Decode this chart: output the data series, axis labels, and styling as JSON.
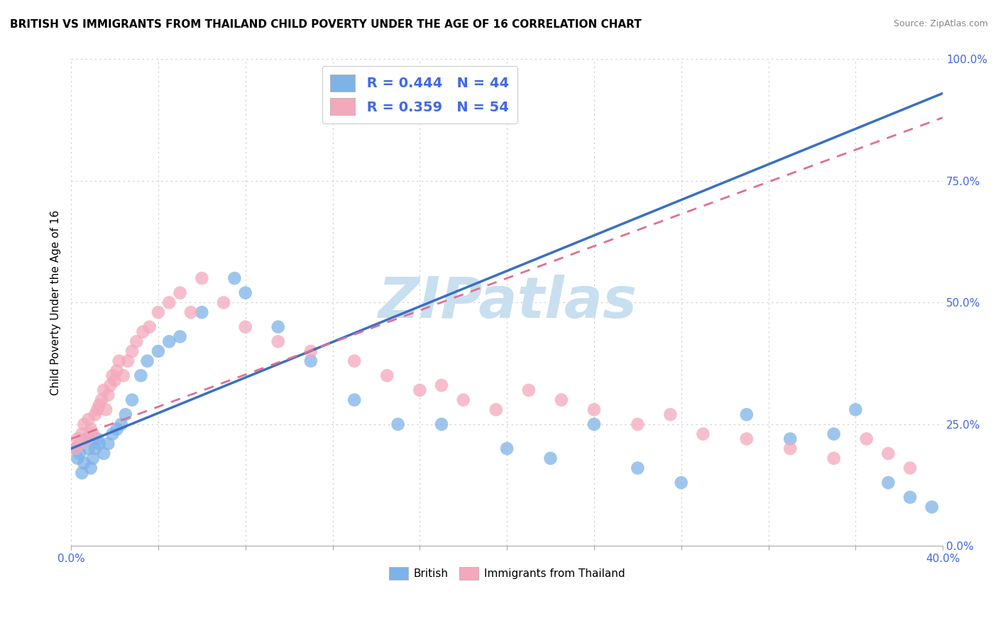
{
  "title": "BRITISH VS IMMIGRANTS FROM THAILAND CHILD POVERTY UNDER THE AGE OF 16 CORRELATION CHART",
  "source": "Source: ZipAtlas.com",
  "ylabel": "Child Poverty Under the Age of 16",
  "legend_british_R": "R = 0.444",
  "legend_british_N": "N = 44",
  "legend_thai_R": "R = 0.359",
  "legend_thai_N": "N = 54",
  "xlim": [
    0.0,
    40.0
  ],
  "ylim": [
    0.0,
    100.0
  ],
  "yticks": [
    0.0,
    25.0,
    50.0,
    75.0,
    100.0
  ],
  "xticks": [
    0.0,
    4.0,
    8.0,
    12.0,
    16.0,
    20.0,
    24.0,
    28.0,
    32.0,
    36.0,
    40.0
  ],
  "british_color": "#7EB3E8",
  "thai_color": "#F4A8BC",
  "british_line_color": "#3A6FC4",
  "thai_line_color": "#E07090",
  "watermark": "ZIPatlas",
  "watermark_color": "#C8DFF0",
  "british_x": [
    0.2,
    0.3,
    0.4,
    0.5,
    0.6,
    0.7,
    0.8,
    0.9,
    1.0,
    1.1,
    1.2,
    1.3,
    1.5,
    1.7,
    1.9,
    2.1,
    2.3,
    2.5,
    2.8,
    3.2,
    3.5,
    4.0,
    4.5,
    5.0,
    6.0,
    7.5,
    8.0,
    9.5,
    11.0,
    13.0,
    15.0,
    17.0,
    20.0,
    22.0,
    24.0,
    26.0,
    28.0,
    31.0,
    33.0,
    35.0,
    36.0,
    37.5,
    38.5,
    39.5
  ],
  "british_y": [
    20.0,
    18.0,
    19.0,
    15.0,
    17.0,
    22.0,
    20.0,
    16.0,
    18.0,
    20.0,
    22.0,
    21.0,
    19.0,
    21.0,
    23.0,
    24.0,
    25.0,
    27.0,
    30.0,
    35.0,
    38.0,
    40.0,
    42.0,
    43.0,
    48.0,
    55.0,
    52.0,
    45.0,
    38.0,
    30.0,
    25.0,
    25.0,
    20.0,
    18.0,
    25.0,
    16.0,
    13.0,
    27.0,
    22.0,
    23.0,
    28.0,
    13.0,
    10.0,
    8.0
  ],
  "thai_x": [
    0.2,
    0.3,
    0.4,
    0.5,
    0.6,
    0.7,
    0.8,
    0.9,
    1.0,
    1.1,
    1.2,
    1.3,
    1.4,
    1.5,
    1.6,
    1.7,
    1.8,
    1.9,
    2.0,
    2.1,
    2.2,
    2.4,
    2.6,
    2.8,
    3.0,
    3.3,
    3.6,
    4.0,
    4.5,
    5.0,
    5.5,
    6.0,
    7.0,
    8.0,
    9.5,
    11.0,
    13.0,
    14.5,
    16.0,
    17.0,
    18.0,
    19.5,
    21.0,
    22.5,
    24.0,
    26.0,
    27.5,
    29.0,
    31.0,
    33.0,
    35.0,
    36.5,
    37.5,
    38.5
  ],
  "thai_y": [
    20.0,
    22.0,
    21.0,
    23.0,
    25.0,
    22.0,
    26.0,
    24.0,
    23.0,
    27.0,
    28.0,
    29.0,
    30.0,
    32.0,
    28.0,
    31.0,
    33.0,
    35.0,
    34.0,
    36.0,
    38.0,
    35.0,
    38.0,
    40.0,
    42.0,
    44.0,
    45.0,
    48.0,
    50.0,
    52.0,
    48.0,
    55.0,
    50.0,
    45.0,
    42.0,
    40.0,
    38.0,
    35.0,
    32.0,
    33.0,
    30.0,
    28.0,
    32.0,
    30.0,
    28.0,
    25.0,
    27.0,
    23.0,
    22.0,
    20.0,
    18.0,
    22.0,
    19.0,
    16.0
  ],
  "british_trendline_x0": 0.0,
  "british_trendline_y0": 20.0,
  "british_trendline_x1": 40.0,
  "british_trendline_y1": 93.0,
  "thai_trendline_x0": 0.0,
  "thai_trendline_y0": 22.0,
  "thai_trendline_x1": 40.0,
  "thai_trendline_y1": 88.0
}
